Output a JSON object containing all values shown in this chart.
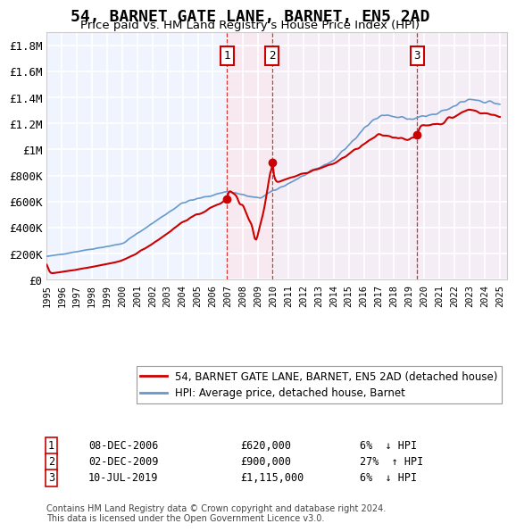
{
  "title": "54, BARNET GATE LANE, BARNET, EN5 2AD",
  "subtitle": "Price paid vs. HM Land Registry's House Price Index (HPI)",
  "title_fontsize": 13,
  "subtitle_fontsize": 10,
  "ylabel": "",
  "xlabel": "",
  "ylim": [
    0,
    1900000
  ],
  "xlim_start": 1995.0,
  "xlim_end": 2025.5,
  "yticks": [
    0,
    200000,
    400000,
    600000,
    800000,
    1000000,
    1200000,
    1400000,
    1600000,
    1800000
  ],
  "ytick_labels": [
    "£0",
    "£200K",
    "£400K",
    "£600K",
    "£800K",
    "£1M",
    "£1.2M",
    "£1.4M",
    "£1.6M",
    "£1.8M"
  ],
  "background_color": "#ffffff",
  "plot_bg_color": "#f0f4ff",
  "grid_color": "#ffffff",
  "transactions": [
    {
      "num": 1,
      "date": "08-DEC-2006",
      "price": 620000,
      "pct": "6%",
      "dir": "↓",
      "x": 2006.92
    },
    {
      "num": 2,
      "date": "02-DEC-2009",
      "price": 900000,
      "pct": "27%",
      "dir": "↑",
      "x": 2009.92
    },
    {
      "num": 3,
      "date": "10-JUL-2019",
      "price": 1115000,
      "pct": "6%",
      "dir": "↓",
      "x": 2019.53
    }
  ],
  "legend_entries": [
    {
      "label": "54, BARNET GATE LANE, BARNET, EN5 2AD (detached house)",
      "color": "#cc0000"
    },
    {
      "label": "HPI: Average price, detached house, Barnet",
      "color": "#6699cc"
    }
  ],
  "footnote": "Contains HM Land Registry data © Crown copyright and database right 2024.\nThis data is licensed under the Open Government Licence v3.0.",
  "xtick_years": [
    1995,
    1996,
    1997,
    1998,
    1999,
    2000,
    2001,
    2002,
    2003,
    2004,
    2005,
    2006,
    2007,
    2008,
    2009,
    2010,
    2011,
    2012,
    2013,
    2014,
    2015,
    2016,
    2017,
    2018,
    2019,
    2020,
    2021,
    2022,
    2023,
    2024,
    2025
  ]
}
